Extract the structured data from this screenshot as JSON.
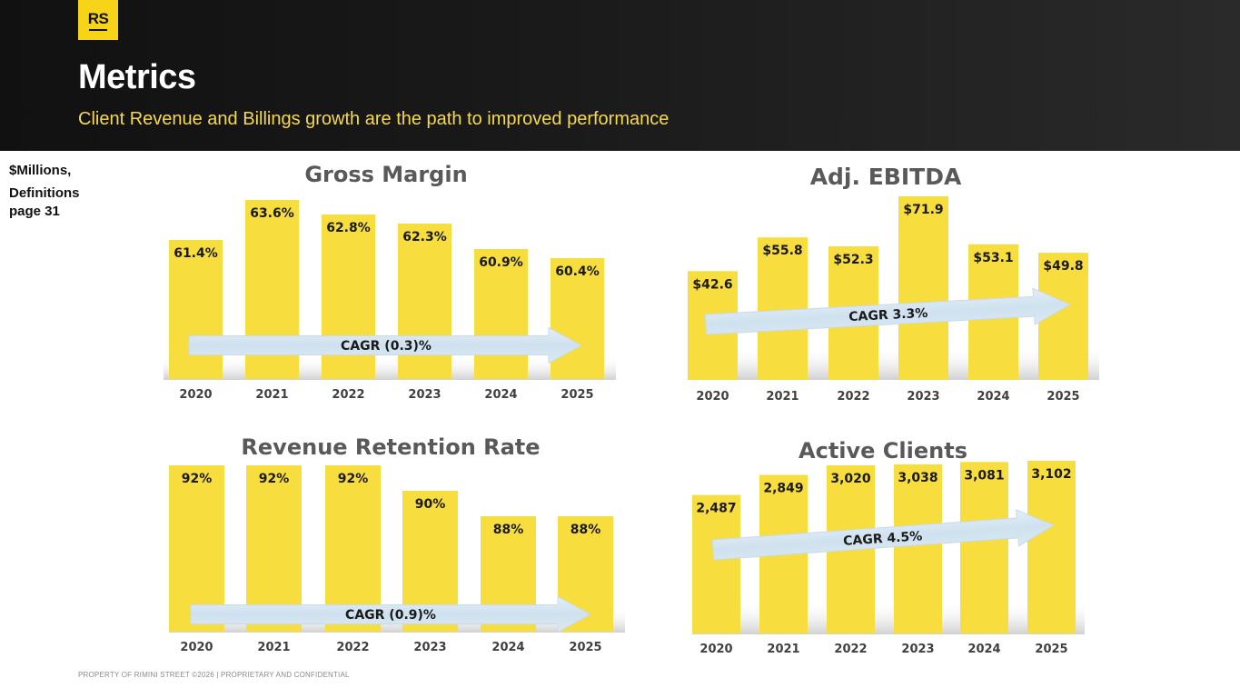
{
  "header": {
    "logo": "RS",
    "title": "Metrics",
    "subtitle": "Client Revenue and Billings growth are the path to improved performance"
  },
  "note": {
    "line1": "$Millions,",
    "line2": "Definitions",
    "line3": "page 31"
  },
  "footer": "PROPERTY OF RIMINI STREET ©2026 | PROPRIETARY AND CONFIDENTIAL",
  "colors": {
    "bar": "#f7dd3e",
    "chart_title": "#595959",
    "arrow": "#d6e6f2",
    "header_bg": "#111111",
    "subtitle": "#f7d94c"
  },
  "chart_data": [
    {
      "id": "gross-margin",
      "type": "bar",
      "title": "Gross Margin",
      "categories": [
        "2020",
        "2021",
        "2022",
        "2023",
        "2024",
        "2025"
      ],
      "values": [
        61.4,
        63.6,
        62.8,
        62.3,
        60.9,
        60.4
      ],
      "labels": [
        "61.4%",
        "63.6%",
        "62.8%",
        "62.3%",
        "60.9%",
        "60.4%"
      ],
      "ylim": [
        58.0,
        63.6
      ],
      "annotation": "CAGR (0.3)%"
    },
    {
      "id": "adj-ebitda",
      "type": "bar",
      "title": "Adj. EBITDA",
      "categories": [
        "2020",
        "2021",
        "2022",
        "2023",
        "2024",
        "2025"
      ],
      "values": [
        42.6,
        55.8,
        52.3,
        71.9,
        53.1,
        49.8
      ],
      "labels": [
        "$42.6",
        "$55.8",
        "$52.3",
        "$71.9",
        "$53.1",
        "$49.8"
      ],
      "ylim": [
        0,
        71.9
      ],
      "annotation": "CAGR 3.3%"
    },
    {
      "id": "revenue-retention",
      "type": "bar",
      "title": "Revenue Retention Rate",
      "categories": [
        "2020",
        "2021",
        "2022",
        "2023",
        "2024",
        "2025"
      ],
      "values": [
        92,
        92,
        92,
        90,
        88,
        88
      ],
      "labels": [
        "92%",
        "92%",
        "92%",
        "90%",
        "88%",
        "88%"
      ],
      "ylim": [
        85,
        92
      ],
      "annotation": "CAGR (0.9)%"
    },
    {
      "id": "active-clients",
      "type": "bar",
      "title": "Active Clients",
      "categories": [
        "2020",
        "2021",
        "2022",
        "2023",
        "2024",
        "2025"
      ],
      "values": [
        2487,
        2849,
        3020,
        3038,
        3081,
        3102
      ],
      "labels": [
        "2,487",
        "2,849",
        "3,020",
        "3,038",
        "3,081",
        "3,102"
      ],
      "ylim": [
        0,
        3102
      ],
      "annotation": "CAGR 4.5%"
    }
  ]
}
